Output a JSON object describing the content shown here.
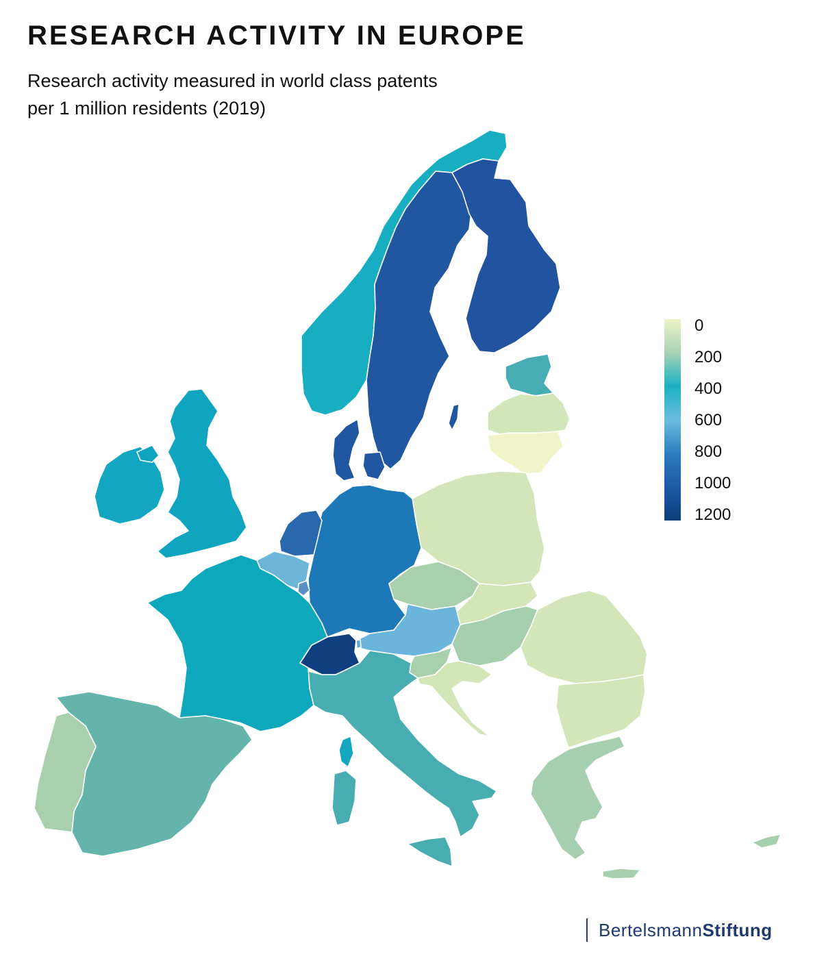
{
  "title": "RESEARCH ACTIVITY IN EUROPE",
  "subtitle_lines": [
    "Research activity measured in world class patents",
    "per 1 million residents (2019)"
  ],
  "legend": {
    "ticks": [
      "0",
      "200",
      "400",
      "600",
      "800",
      "1000",
      "1200"
    ],
    "colors": [
      "#edf3c8",
      "#a8d3b4",
      "#1bb0c4",
      "#6bbde0",
      "#2b7dbf",
      "#1d5aa5",
      "#0b3f7d"
    ]
  },
  "brand": {
    "light": "Bertelsmann",
    "bold": "Stiftung"
  },
  "colors": {
    "norway": "#18aec2",
    "sweden": "#2157a1",
    "finland": "#2153a0",
    "estonia": "#46adb5",
    "latvia": "#d2e6b9",
    "lithuania": "#f1f4c9",
    "poland": "#d4e5b9",
    "denmark": "#2157a1",
    "germany": "#1c78b6",
    "netherlands": "#2869ad",
    "belgium": "#6eb6d9",
    "luxembourg": "#5c8fc6",
    "uk": "#0fa5c1",
    "ireland": "#12a6c1",
    "france": "#0ea8bd",
    "spain": "#65b4ac",
    "portugal": "#a9d0ad",
    "switzerland": "#0f3f7f",
    "austria": "#6bb5dd",
    "italy": "#47adb1",
    "czechia": "#aacfad",
    "slovakia": "#d4e6b8",
    "hungary": "#a6cfae",
    "slovenia": "#a8d0ad",
    "croatia": "#d4e6b8",
    "romania": "#d4e5b9",
    "bulgaria": "#d4e6b9",
    "greece": "#a6cfaf",
    "cyprus": "#a6cfaf",
    "corsica": "#12a6c1",
    "liechtenstein": "#5fa9d4"
  }
}
